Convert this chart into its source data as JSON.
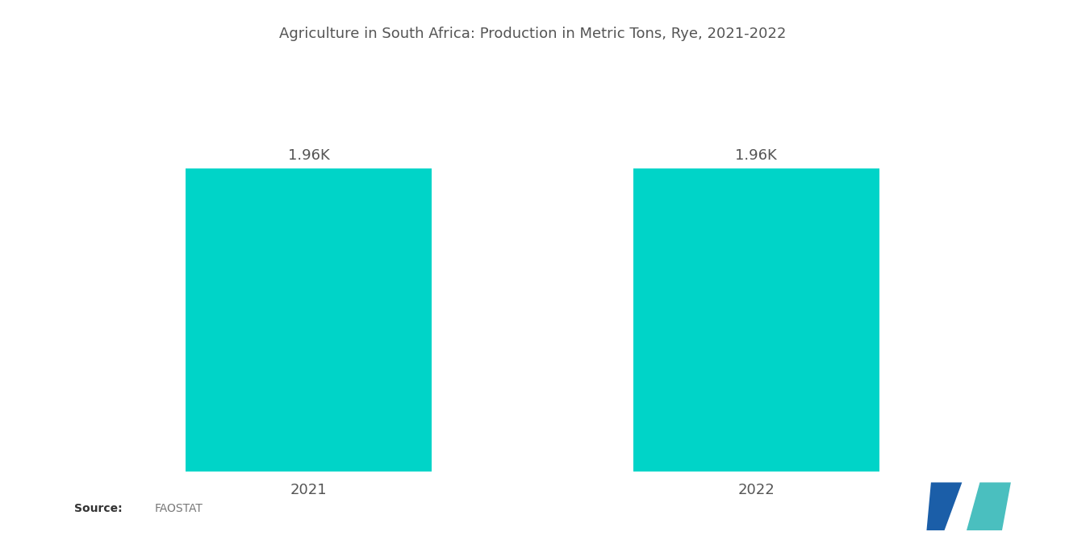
{
  "title": "Agriculture in South Africa: Production in Metric Tons, Rye, 2021-2022",
  "categories": [
    "2021",
    "2022"
  ],
  "values": [
    1960,
    1960
  ],
  "bar_labels": [
    "1.96K",
    "1.96K"
  ],
  "bar_color": "#00D4C8",
  "background_color": "#ffffff",
  "title_fontsize": 13,
  "label_fontsize": 13,
  "tick_fontsize": 13,
  "ylim": [
    0,
    2600
  ],
  "x_positions": [
    1,
    2
  ],
  "bar_width": 0.55,
  "xlim": [
    0.5,
    2.5
  ]
}
